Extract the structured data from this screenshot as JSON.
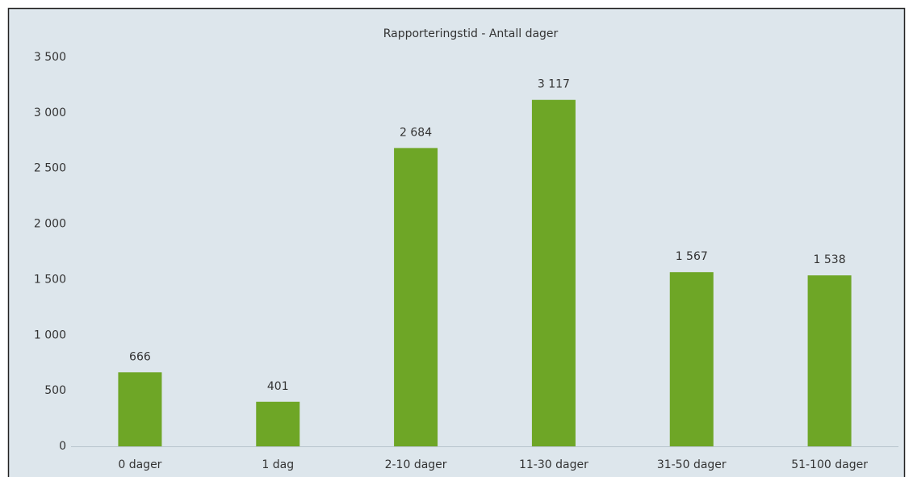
{
  "chart_data": {
    "type": "bar",
    "title": "Rapporteringstid - Antall dager",
    "categories": [
      "0 dager",
      "1 dag",
      "2-10 dager",
      "11-30 dager",
      "31-50 dager",
      "51-100 dager"
    ],
    "values": [
      666,
      401,
      2684,
      3117,
      1567,
      1538
    ],
    "value_labels": [
      "666",
      "401",
      "2 684",
      "3 117",
      "1 567",
      "1 538"
    ],
    "color": "#6ea626",
    "ylim": [
      0,
      3500
    ],
    "yticks": [
      0,
      500,
      {
        "value": 1000,
        "label": "1 000"
      },
      {
        "value": 1500,
        "label": "1 500"
      },
      {
        "value": 2000,
        "label": "2 000"
      },
      {
        "value": 2500,
        "label": "2 500"
      },
      {
        "value": 3000,
        "label": "3 000"
      },
      {
        "value": 3500,
        "label": "3 500"
      }
    ],
    "grid": false
  }
}
